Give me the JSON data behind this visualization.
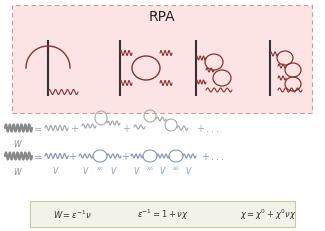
{
  "title": "RPA",
  "bg_box_color": "#fce4e4",
  "bg_box_edge": "#cc9999",
  "formula_box_color": "#f2f2e8",
  "formula_box_edge": "#cccc99",
  "wiggly_color": "#883333",
  "dark_color": "#333333",
  "gray_color": "#999999",
  "blue_color": "#7799bb",
  "formula1": "$W = \\epsilon^{-1}\\nu$",
  "formula2": "$\\epsilon^{-1} = 1 + \\nu\\chi$",
  "formula3": "$\\chi = \\chi^0 + \\chi^0\\nu\\chi$"
}
